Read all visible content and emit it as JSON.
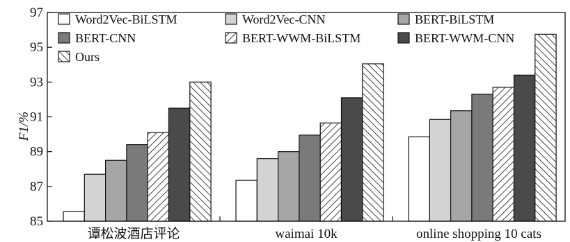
{
  "chart_data": {
    "type": "bar",
    "ylabel": "F1/%",
    "ylim": [
      85,
      97
    ],
    "yticks": [
      "85",
      "87",
      "89",
      "91",
      "93",
      "95",
      "97"
    ],
    "legend_position": "top-left, inside plot",
    "categories": [
      "谭松波酒店评论",
      "waimai  10k",
      "online  shopping  10  cats"
    ],
    "series": [
      {
        "name": "Word2Vec-BiLSTM",
        "values": [
          85.55,
          87.35,
          89.85
        ],
        "fill": "#ffffff",
        "pattern": "none"
      },
      {
        "name": "Word2Vec-CNN",
        "values": [
          87.7,
          88.6,
          90.85
        ],
        "fill": "#d3d3d3",
        "pattern": "none"
      },
      {
        "name": "BERT-BiLSTM",
        "values": [
          88.5,
          89.0,
          91.35
        ],
        "fill": "#a6a6a6",
        "pattern": "none"
      },
      {
        "name": "BERT-CNN",
        "values": [
          89.4,
          89.95,
          92.3
        ],
        "fill": "#7a7a7a",
        "pattern": "none"
      },
      {
        "name": "BERT-WWM-BiLSTM",
        "values": [
          90.1,
          90.65,
          92.7
        ],
        "fill": "#ffffff",
        "pattern": "forward-hatch"
      },
      {
        "name": "BERT-WWM-CNN",
        "values": [
          91.5,
          92.1,
          93.4
        ],
        "fill": "#4a4a4a",
        "pattern": "none"
      },
      {
        "name": "Ours",
        "values": [
          93.0,
          94.05,
          95.75
        ],
        "fill": "#ffffff",
        "pattern": "back-hatch"
      }
    ]
  }
}
